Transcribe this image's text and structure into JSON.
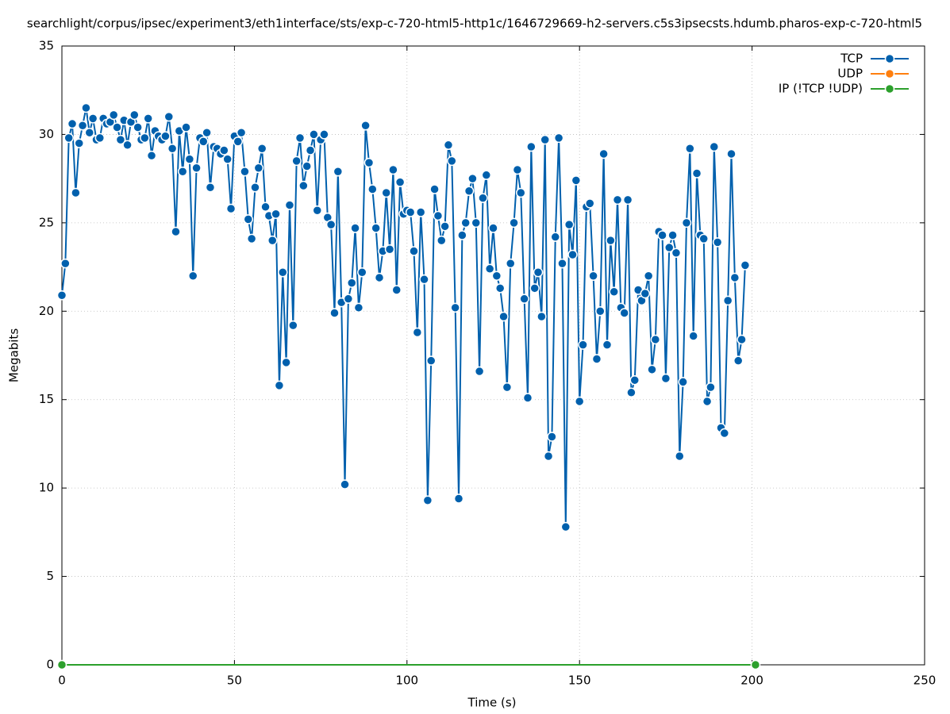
{
  "chart_data": {
    "type": "line",
    "title": "searchlight/corpus/ipsec/experiment3/eth1interface/sts/exp-c-720-html5-http1c/1646729669-h2-servers.c5s3ipsecsts.hdumb.pharos-exp-c-720-html5",
    "x_label": "Time (s)",
    "y_label": "Megabits",
    "xlim": [
      0,
      250
    ],
    "xticks": [
      0,
      50,
      100,
      150,
      200,
      250
    ],
    "ylim": [
      0,
      35
    ],
    "yticks": [
      0,
      5,
      10,
      15,
      20,
      25,
      30,
      35
    ],
    "grid": true,
    "legend": "top-right",
    "series": [
      {
        "name": "TCP",
        "color": "#0060ad",
        "x": [
          0,
          1,
          2,
          3,
          4,
          5,
          6,
          7,
          8,
          9,
          10,
          11,
          12,
          13,
          14,
          15,
          16,
          17,
          18,
          19,
          20,
          21,
          22,
          23,
          24,
          25,
          26,
          27,
          28,
          29,
          30,
          31,
          32,
          33,
          34,
          35,
          36,
          37,
          38,
          39,
          40,
          41,
          42,
          43,
          44,
          45,
          46,
          47,
          48,
          49,
          50,
          51,
          52,
          53,
          54,
          55,
          56,
          57,
          58,
          59,
          60,
          61,
          62,
          63,
          64,
          65,
          66,
          67,
          68,
          69,
          70,
          71,
          72,
          73,
          74,
          75,
          76,
          77,
          78,
          79,
          80,
          81,
          82,
          83,
          84,
          85,
          86,
          87,
          88,
          89,
          90,
          91,
          92,
          93,
          94,
          95,
          96,
          97,
          98,
          99,
          100,
          101,
          102,
          103,
          104,
          105,
          106,
          107,
          108,
          109,
          110,
          111,
          112,
          113,
          114,
          115,
          116,
          117,
          118,
          119,
          120,
          121,
          122,
          123,
          124,
          125,
          126,
          127,
          128,
          129,
          130,
          131,
          132,
          133,
          134,
          135,
          136,
          137,
          138,
          139,
          140,
          141,
          142,
          143,
          144,
          145,
          146,
          147,
          148,
          149,
          150,
          151,
          152,
          153,
          154,
          155,
          156,
          157,
          158,
          159,
          160,
          161,
          162,
          163,
          164,
          165,
          166,
          167,
          168,
          169,
          170,
          171,
          172,
          173,
          174,
          175,
          176,
          177,
          178,
          179,
          180,
          181,
          182,
          183,
          184,
          185,
          186,
          187,
          188,
          189,
          190,
          191,
          192,
          193,
          194,
          195,
          196,
          197,
          198
        ],
        "values": [
          20.9,
          22.7,
          29.8,
          30.6,
          26.7,
          29.5,
          30.5,
          31.5,
          30.1,
          30.9,
          29.7,
          29.8,
          30.9,
          30.6,
          30.7,
          31.1,
          30.4,
          29.7,
          30.8,
          29.4,
          30.7,
          31.1,
          30.4,
          29.7,
          29.8,
          30.9,
          28.8,
          30.2,
          29.9,
          29.7,
          29.9,
          31.0,
          29.2,
          24.5,
          30.2,
          27.9,
          30.4,
          28.6,
          22.0,
          28.1,
          29.8,
          29.6,
          30.1,
          27.0,
          29.3,
          29.2,
          28.9,
          29.1,
          28.6,
          25.8,
          29.9,
          29.6,
          30.1,
          27.9,
          25.2,
          24.1,
          27.0,
          28.1,
          29.2,
          25.9,
          25.4,
          24.0,
          25.5,
          15.8,
          22.2,
          17.1,
          26.0,
          19.2,
          28.5,
          29.8,
          27.1,
          28.2,
          29.1,
          30.0,
          25.7,
          29.7,
          30.0,
          25.3,
          24.9,
          19.9,
          27.9,
          20.5,
          10.2,
          20.7,
          21.6,
          24.7,
          20.2,
          22.2,
          30.5,
          28.4,
          26.9,
          24.7,
          21.9,
          23.4,
          26.7,
          23.5,
          28.0,
          21.2,
          27.3,
          25.5,
          25.7,
          25.6,
          23.4,
          18.8,
          25.6,
          21.8,
          9.3,
          17.2,
          26.9,
          25.4,
          24.0,
          24.8,
          29.4,
          28.5,
          20.2,
          9.4,
          24.3,
          25.0,
          26.8,
          27.5,
          25.0,
          16.6,
          26.4,
          27.7,
          22.4,
          24.7,
          22.0,
          21.3,
          19.7,
          15.7,
          22.7,
          25.0,
          28.0,
          26.7,
          20.7,
          15.1,
          29.3,
          21.3,
          22.2,
          19.7,
          29.7,
          11.8,
          12.9,
          24.2,
          29.8,
          22.7,
          7.8,
          24.9,
          23.2,
          27.4,
          14.9,
          18.1,
          25.9,
          26.1,
          22.0,
          17.3,
          20.0,
          28.9,
          18.1,
          24.0,
          21.1,
          26.3,
          20.2,
          19.9,
          26.3,
          15.4,
          16.1,
          21.2,
          20.6,
          21.0,
          22.0,
          16.7,
          18.4,
          24.5,
          24.3,
          16.2,
          23.6,
          24.3,
          23.3,
          11.8,
          16.0,
          25.0,
          29.2,
          18.6,
          27.8,
          24.3,
          24.1,
          14.9,
          15.7,
          29.3,
          23.9,
          13.4,
          13.1,
          20.6,
          28.9,
          21.9,
          17.2,
          18.4,
          22.6
        ]
      },
      {
        "name": "UDP",
        "color": "#ff7f0e",
        "x": [],
        "values": []
      },
      {
        "name": "IP (!TCP  !UDP)",
        "color": "#2ca02c",
        "x": [
          0,
          201
        ],
        "values": [
          0,
          0
        ]
      }
    ]
  }
}
